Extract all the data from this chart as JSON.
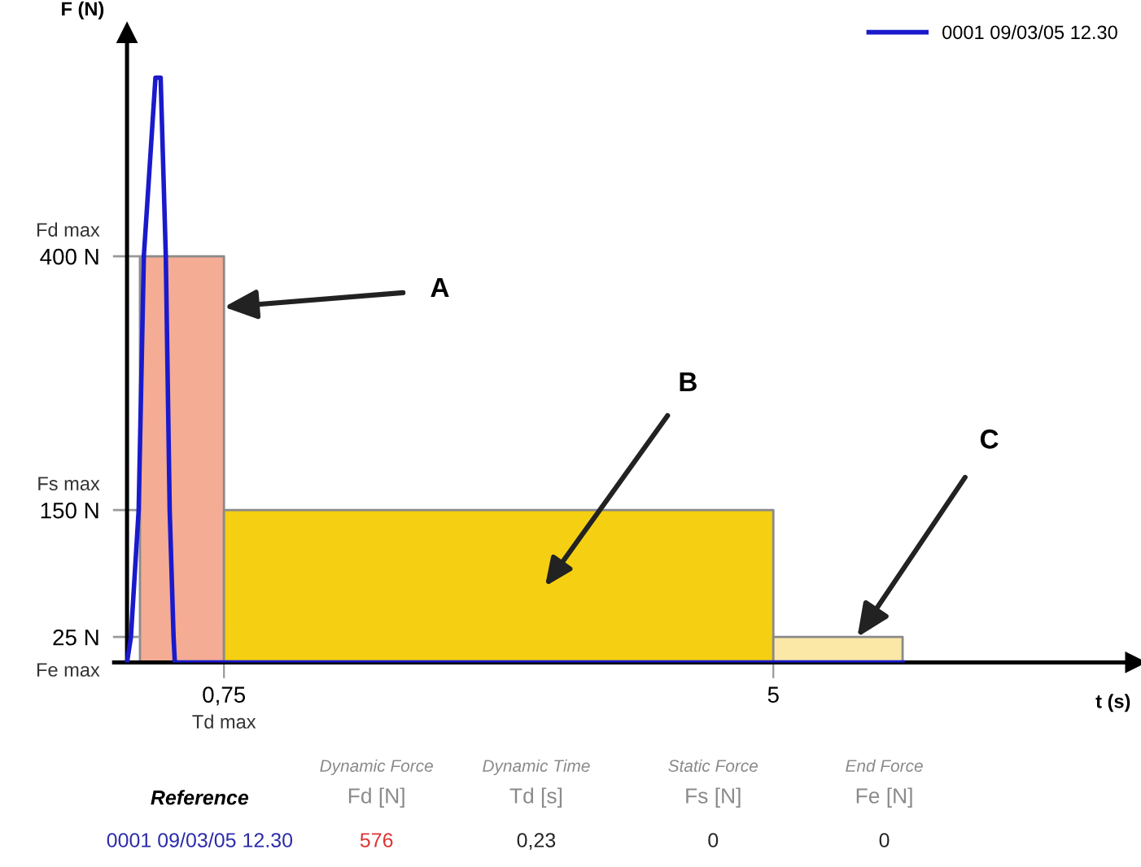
{
  "chart_data": {
    "type": "line",
    "xlabel": "t (s)",
    "ylabel": "F (N)",
    "xlim": [
      -0.1,
      7.8
    ],
    "ylim": [
      0,
      620
    ],
    "xticks": [
      {
        "value": 0.75,
        "label": "0,75"
      },
      5
    ],
    "yticks": [
      {
        "value": 0,
        "label": null
      },
      {
        "value": 25,
        "label": "25 N"
      },
      {
        "value": 150,
        "label": "150 N"
      },
      {
        "value": 400,
        "label": "400 N"
      }
    ],
    "series": [
      {
        "type": "area",
        "color": "#f4ac94",
        "x": [
          0.1,
          0.75
        ],
        "values": [
          400,
          400
        ]
      },
      {
        "type": "area",
        "color": "#f5cf12",
        "x": [
          0.75,
          5
        ],
        "values": [
          150,
          150
        ]
      },
      {
        "type": "area",
        "color": "#fbe8a6",
        "x": [
          5,
          6
        ],
        "values": [
          25,
          25
        ]
      },
      {
        "name": "0001 09/03/05 12.30",
        "color": "#1a1acc",
        "x": [
          0,
          0.03,
          0.09,
          0.13,
          0.22,
          0.26,
          0.3,
          0.33,
          0.36,
          0.37,
          6.0
        ],
        "values": [
          0,
          25,
          150,
          400,
          576,
          576,
          400,
          150,
          25,
          0,
          0
        ]
      }
    ],
    "annotations": [
      {
        "text": "A",
        "x": 0.75,
        "y": 350
      },
      "B",
      {
        "text": "C",
        "x": 5.65,
        "y": 25
      },
      "Fd max",
      "Fs max",
      "Fe max",
      "Td max",
      "Reference",
      "Dynamic Force\nFd [N]",
      "Dynamic Time\nTd [s]",
      "Static Force\nFs [N]",
      "End Force\nFe [N]",
      "0001 09/03/05 12.30",
      "576",
      "0,23",
      "0",
      "0"
    ],
    "legend": "top right",
    "grid": false,
    "marker": "none",
    "line_style": "solid"
  }
}
